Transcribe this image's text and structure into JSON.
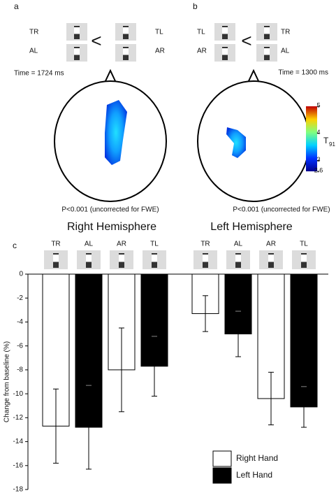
{
  "chart_data": [
    {
      "type": "heatmap",
      "panel": "a",
      "conditions": {
        "left_top": "TR",
        "left_bottom": "AL",
        "right_top": "TL",
        "right_bottom": "AR",
        "relation": "<"
      },
      "time_label": "Time = 1724 ms",
      "caption": "P<0.001 (uncorrected for FWE)"
    },
    {
      "type": "heatmap",
      "panel": "b",
      "conditions": {
        "left_top": "TL",
        "left_bottom": "AR",
        "right_top": "TR",
        "right_bottom": "AL",
        "relation": "<"
      },
      "time_label": "Time = 1300 ms",
      "caption": "P<0.001 (uncorrected for FWE)",
      "colorbar_label": "T",
      "colorbar_label_subscript": "91",
      "clim": [
        2.6,
        5
      ],
      "cticks": [
        2.6,
        3,
        4,
        5
      ]
    },
    {
      "type": "bar",
      "panel": "c",
      "group_labels": [
        "Right Hemisphere",
        "Left Hemisphere"
      ],
      "categories": [
        "TR",
        "AL",
        "AR",
        "TL",
        "TR",
        "AL",
        "AR",
        "TL"
      ],
      "ylabel": "Change from baseline (%)",
      "ylim": [
        0,
        -18
      ],
      "yticks": [
        0,
        -2,
        -4,
        -6,
        -8,
        -10,
        -12,
        -14,
        -16,
        -18
      ],
      "series": [
        {
          "name": "Right Hand",
          "color": "#ffffff",
          "values": [
            -12.7,
            null,
            -8.0,
            null,
            -3.3,
            null,
            -10.4,
            null
          ],
          "errors": [
            3.1,
            null,
            3.5,
            null,
            1.5,
            null,
            2.2,
            null
          ]
        },
        {
          "name": "Left Hand",
          "color": "#000000",
          "values": [
            null,
            -12.8,
            null,
            -7.7,
            null,
            -5.0,
            null,
            -11.1
          ],
          "errors": [
            null,
            3.5,
            null,
            2.5,
            null,
            1.9,
            null,
            1.7
          ]
        }
      ]
    }
  ]
}
